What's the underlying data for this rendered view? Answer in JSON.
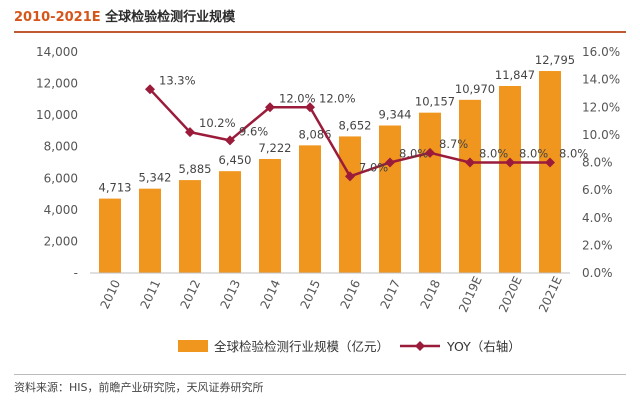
{
  "header": {
    "title_years": "2010-2021E",
    "title_text": "全球检验检测行业规模"
  },
  "source": "资料来源：HIS，前瞻产业研究院，天风证券研究所",
  "chart_data": {
    "type": "bar",
    "title": "2010-2021E 全球检验检测行业规模",
    "categories": [
      "2010",
      "2011",
      "2012",
      "2013",
      "2014",
      "2015",
      "2016",
      "2017",
      "2018",
      "2019E",
      "2020E",
      "2021E"
    ],
    "series": [
      {
        "name": "全球检验检测行业规模（亿元）",
        "type": "bar",
        "axis": "left",
        "color": "#f0961e",
        "values": [
          4713,
          5342,
          5885,
          6450,
          7222,
          8086,
          8652,
          9344,
          10157,
          10970,
          11847,
          12795
        ],
        "labels": [
          "4,713",
          "5,342",
          "5,885",
          "6,450",
          "7,222",
          "8,086",
          "8,652",
          "9,344",
          "10,157",
          "10,970",
          "11,847",
          "12,795"
        ]
      },
      {
        "name": "YOY（右轴）",
        "type": "line",
        "axis": "right",
        "color": "#9b1c3a",
        "values": [
          null,
          13.3,
          10.2,
          9.6,
          12.0,
          12.0,
          7.0,
          8.0,
          8.7,
          8.0,
          8.0,
          8.0
        ],
        "labels": [
          null,
          "13.3%",
          "10.2%",
          "9.6%",
          "12.0%",
          "12.0%",
          "7.0%",
          "8.0%",
          "8.7%",
          "8.0%",
          "8.0%",
          "8.0%"
        ]
      }
    ],
    "y_left": {
      "ylim": [
        0,
        14000
      ],
      "ticks": [
        0,
        2000,
        4000,
        6000,
        8000,
        10000,
        12000,
        14000
      ],
      "tick_labels": [
        "-",
        "2,000",
        "4,000",
        "6,000",
        "8,000",
        "10,000",
        "12,000",
        "14,000"
      ]
    },
    "y_right": {
      "ylim": [
        0,
        16
      ],
      "ticks": [
        0,
        2,
        4,
        6,
        8,
        10,
        12,
        14,
        16
      ],
      "tick_labels": [
        "0.0%",
        "2.0%",
        "4.0%",
        "6.0%",
        "8.0%",
        "10.0%",
        "12.0%",
        "14.0%",
        "16.0%"
      ]
    },
    "grid": false,
    "legend": "bottom"
  }
}
